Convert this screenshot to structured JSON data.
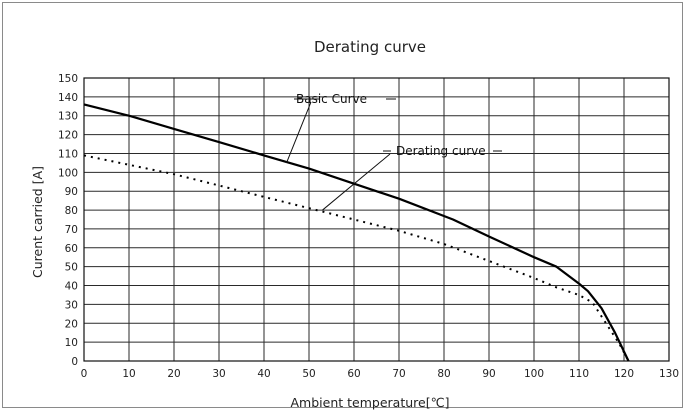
{
  "chart_data": {
    "type": "line",
    "title": "Derating curve",
    "xlabel": "Ambient temperature[℃]",
    "ylabel": "Curent carried [A]",
    "xlim": [
      0,
      130
    ],
    "ylim": [
      0,
      150
    ],
    "x_ticks": [
      "0",
      "10",
      "20",
      "30",
      "40",
      "50",
      "60",
      "70",
      "80",
      "90",
      "100",
      "110",
      "120",
      "130"
    ],
    "y_ticks": [
      "0",
      "10",
      "20",
      "30",
      "40",
      "50",
      "60",
      "70",
      "80",
      "90",
      "100",
      "110",
      "120",
      "130",
      "140",
      "150"
    ],
    "grid": true,
    "series": [
      {
        "name": "Basic Curve",
        "style": "solid",
        "color": "#000000",
        "points": [
          [
            0,
            136
          ],
          [
            10,
            130
          ],
          [
            20,
            123
          ],
          [
            30,
            116
          ],
          [
            40,
            109
          ],
          [
            50,
            102
          ],
          [
            60,
            94
          ],
          [
            70,
            86
          ],
          [
            82,
            75
          ],
          [
            90,
            66
          ],
          [
            100,
            55
          ],
          [
            105,
            50
          ],
          [
            110,
            41
          ],
          [
            112,
            37
          ],
          [
            115,
            28
          ],
          [
            118,
            15
          ],
          [
            121,
            0
          ]
        ]
      },
      {
        "name": "Derating curve",
        "style": "dotted",
        "color": "#000000",
        "points": [
          [
            0,
            109
          ],
          [
            10,
            104
          ],
          [
            20,
            99
          ],
          [
            30,
            93
          ],
          [
            40,
            87
          ],
          [
            50,
            81
          ],
          [
            60,
            75
          ],
          [
            70,
            69
          ],
          [
            80,
            62
          ],
          [
            90,
            53
          ],
          [
            100,
            44
          ],
          [
            105,
            39
          ],
          [
            110,
            35
          ],
          [
            113,
            31
          ],
          [
            116,
            20
          ],
          [
            119,
            9
          ],
          [
            121,
            0
          ]
        ]
      }
    ],
    "annotations": [
      {
        "text": "Basic Curve",
        "target": [
          45,
          105
        ]
      },
      {
        "text": "Derating curve",
        "target": [
          53,
          80
        ]
      }
    ]
  }
}
